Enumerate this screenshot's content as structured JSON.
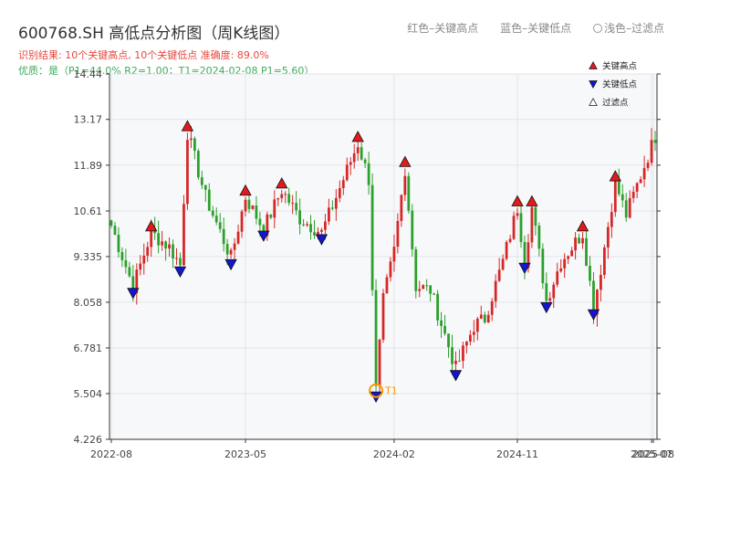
{
  "header": {
    "title": "600768.SH 高低点分析图（周K线图）",
    "subtitle": "识别结果: 10个关键高点, 10个关键低点   准确度: 89.0%",
    "quality": "优质：是（P1=44.0%  R2=1.00；T1=2024-02-08 P1=5.60）"
  },
  "top_legend": {
    "high": "红色–关键高点",
    "low": "蓝色–关键低点",
    "filtered": "浅色–过滤点"
  },
  "colors": {
    "up": "#d62728",
    "down": "#2ca02c",
    "high_marker": "#e31a1c",
    "low_marker": "#1515d0",
    "t1": "#ff9900",
    "plot_bg": "#f7f8fa",
    "grid": "#e1e4e8"
  },
  "chart_data": {
    "type": "candlestick",
    "ylim": [
      4.226,
      14.44
    ],
    "y_ticks": [
      4.226,
      5.504,
      6.781,
      8.058,
      9.335,
      10.61,
      11.89,
      13.17,
      14.44
    ],
    "x_ticks": [
      "2022-08",
      "2023-05",
      "2024-02",
      "2024-11",
      "2025-07",
      "2025-08"
    ],
    "x_tick_positions": [
      0,
      37,
      78,
      112,
      149,
      149.5
    ],
    "num_weeks": 151,
    "legend": [
      "关键高点",
      "关键低点",
      "过滤点"
    ],
    "legend_position": "top-right",
    "t1": {
      "label": "T1",
      "index": 73,
      "price": 5.6,
      "date": "2024-02-08"
    },
    "key_highs": [
      {
        "index": 11,
        "price": 10.0
      },
      {
        "index": 21,
        "price": 12.8
      },
      {
        "index": 37,
        "price": 11.0
      },
      {
        "index": 47,
        "price": 11.2
      },
      {
        "index": 68,
        "price": 12.5
      },
      {
        "index": 81,
        "price": 11.8
      },
      {
        "index": 112,
        "price": 10.7
      },
      {
        "index": 116,
        "price": 10.7
      },
      {
        "index": 130,
        "price": 10.0
      },
      {
        "index": 139,
        "price": 11.4
      }
    ],
    "key_lows": [
      {
        "index": 6,
        "price": 8.5
      },
      {
        "index": 19,
        "price": 9.1
      },
      {
        "index": 33,
        "price": 9.3
      },
      {
        "index": 42,
        "price": 10.1
      },
      {
        "index": 58,
        "price": 10.0
      },
      {
        "index": 73,
        "price": 5.6
      },
      {
        "index": 95,
        "price": 6.2
      },
      {
        "index": 114,
        "price": 9.2
      },
      {
        "index": 120,
        "price": 8.1
      },
      {
        "index": 133,
        "price": 7.9
      }
    ],
    "path_anchors": [
      [
        0,
        10.2
      ],
      [
        6,
        8.5
      ],
      [
        11,
        10.0
      ],
      [
        16,
        9.6
      ],
      [
        19,
        9.1
      ],
      [
        21,
        12.8
      ],
      [
        26,
        11.0
      ],
      [
        33,
        9.3
      ],
      [
        37,
        11.0
      ],
      [
        42,
        10.1
      ],
      [
        47,
        11.2
      ],
      [
        52,
        10.4
      ],
      [
        58,
        10.0
      ],
      [
        68,
        12.5
      ],
      [
        71,
        11.5
      ],
      [
        72,
        8.5
      ],
      [
        73,
        5.6
      ],
      [
        75,
        8.1
      ],
      [
        78,
        9.5
      ],
      [
        81,
        11.8
      ],
      [
        84,
        8.5
      ],
      [
        88,
        8.4
      ],
      [
        95,
        6.2
      ],
      [
        100,
        7.4
      ],
      [
        103,
        7.6
      ],
      [
        108,
        9.2
      ],
      [
        112,
        10.7
      ],
      [
        114,
        9.2
      ],
      [
        116,
        10.7
      ],
      [
        120,
        8.1
      ],
      [
        124,
        9.2
      ],
      [
        130,
        10.0
      ],
      [
        133,
        7.9
      ],
      [
        135,
        9.0
      ],
      [
        139,
        11.4
      ],
      [
        142,
        10.5
      ],
      [
        146,
        11.6
      ],
      [
        150,
        12.7
      ]
    ]
  }
}
